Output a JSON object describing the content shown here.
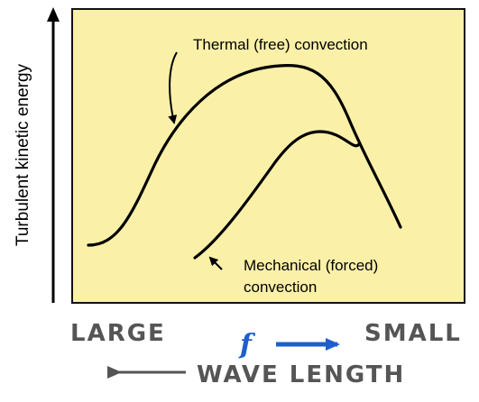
{
  "y_axis": {
    "label": "Turbulent kinetic energy"
  },
  "curves": [
    {
      "label": "Thermal (free) convection"
    },
    {
      "label_line1": "Mechanical (forced)",
      "label_line2": "convection"
    }
  ],
  "x_axis": {
    "left_label": "LARGE",
    "right_label": "SMALL",
    "frequency_symbol": "f",
    "wavelength_label": "WAVE LENGTH"
  },
  "colors": {
    "panel_fill": "#fbf0a8",
    "panel_border": "#111111",
    "curve": "#000000",
    "frequency_arrow": "#1f5fcc",
    "axis_text": "#555555"
  }
}
